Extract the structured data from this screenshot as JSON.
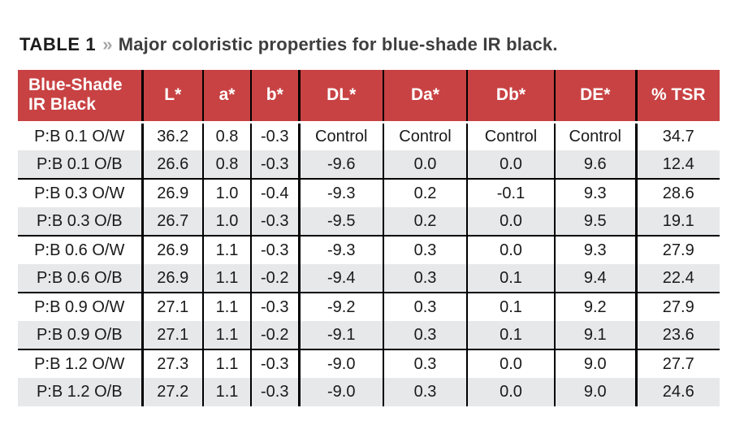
{
  "title": {
    "label": "TABLE 1",
    "separator": "»",
    "text": "Major coloristic properties for blue-shade IR black."
  },
  "colors": {
    "header_bg": "#c84243",
    "header_text": "#ffffff",
    "alt_row_bg": "#e7e8ea",
    "rule": "#000000",
    "title_accent": "#a8a8a8"
  },
  "table": {
    "columns": [
      "Blue-Shade IR Black",
      "L*",
      "a*",
      "b*",
      "DL*",
      "Da*",
      "Db*",
      "DE*",
      "% TSR"
    ],
    "rows": [
      {
        "cells": [
          "P:B 0.1 O/W",
          "36.2",
          "0.8",
          "-0.3",
          "Control",
          "Control",
          "Control",
          "Control",
          "34.7"
        ]
      },
      {
        "cells": [
          "P:B 0.1 O/B",
          "26.6",
          "0.8",
          "-0.3",
          "-9.6",
          "0.0",
          "0.0",
          "9.6",
          "12.4"
        ]
      },
      {
        "cells": [
          "P:B 0.3 O/W",
          "26.9",
          "1.0",
          "-0.4",
          "-9.3",
          "0.2",
          "-0.1",
          "9.3",
          "28.6"
        ]
      },
      {
        "cells": [
          "P:B 0.3 O/B",
          "26.7",
          "1.0",
          "-0.3",
          "-9.5",
          "0.2",
          "0.0",
          "9.5",
          "19.1"
        ]
      },
      {
        "cells": [
          "P:B 0.6 O/W",
          "26.9",
          "1.1",
          "-0.3",
          "-9.3",
          "0.3",
          "0.0",
          "9.3",
          "27.9"
        ]
      },
      {
        "cells": [
          "P:B 0.6 O/B",
          "26.9",
          "1.1",
          "-0.2",
          "-9.4",
          "0.3",
          "0.1",
          "9.4",
          "22.4"
        ]
      },
      {
        "cells": [
          "P:B 0.9 O/W",
          "27.1",
          "1.1",
          "-0.3",
          "-9.2",
          "0.3",
          "0.1",
          "9.2",
          "27.9"
        ]
      },
      {
        "cells": [
          "P:B 0.9 O/B",
          "27.1",
          "1.1",
          "-0.2",
          "-9.1",
          "0.3",
          "0.1",
          "9.1",
          "23.6"
        ]
      },
      {
        "cells": [
          "P:B 1.2 O/W",
          "27.3",
          "1.1",
          "-0.3",
          "-9.0",
          "0.3",
          "0.0",
          "9.0",
          "27.7"
        ]
      },
      {
        "cells": [
          "P:B 1.2 O/B",
          "27.2",
          "1.1",
          "-0.3",
          "-9.0",
          "0.3",
          "0.0",
          "9.0",
          "24.6"
        ]
      }
    ]
  }
}
